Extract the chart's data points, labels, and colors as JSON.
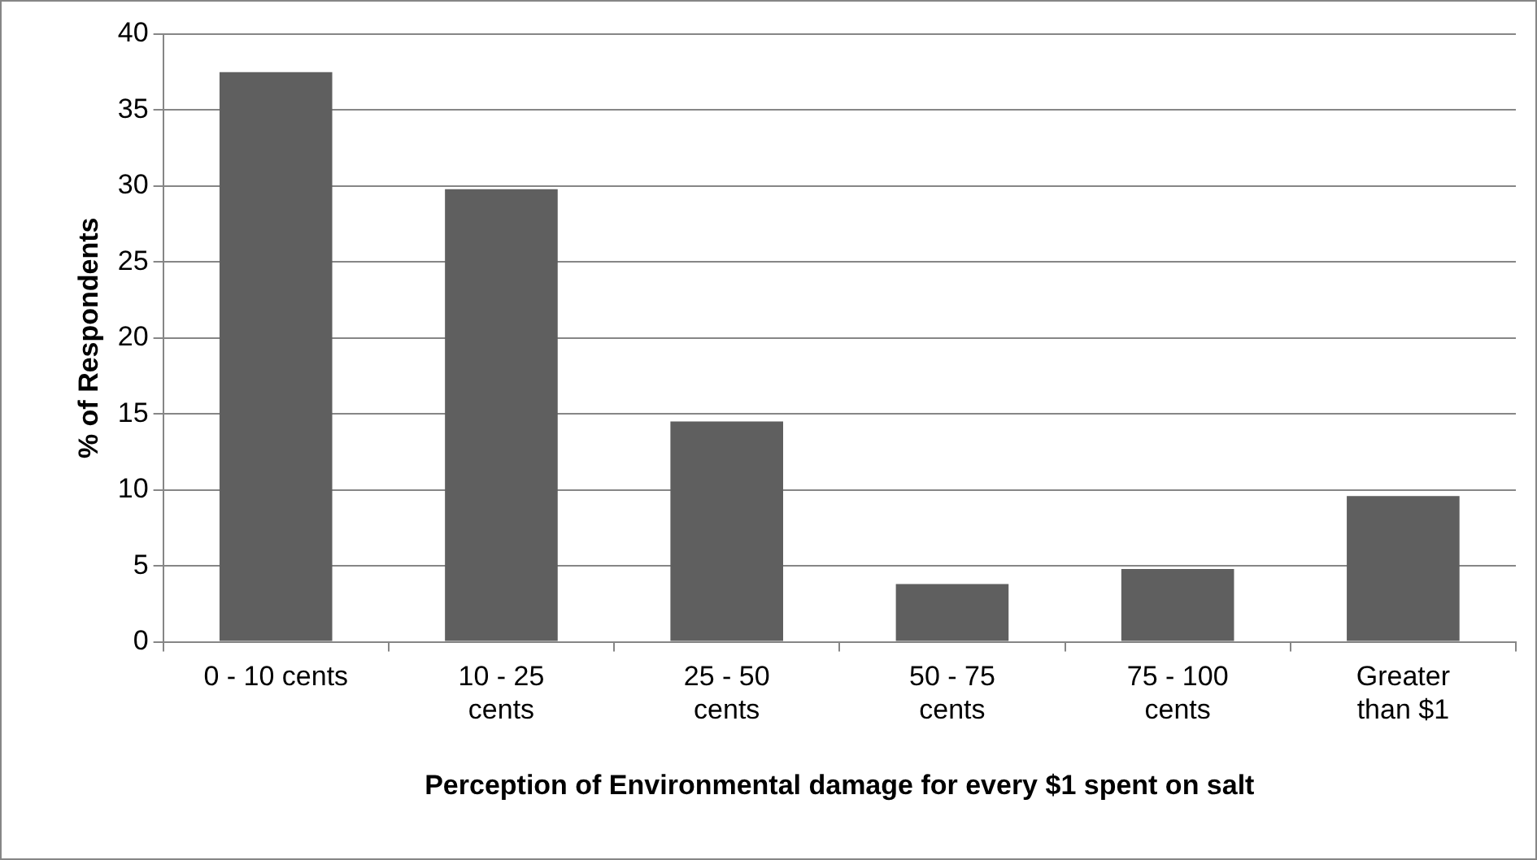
{
  "chart_data": {
    "type": "bar",
    "xlabel": "Perception of Environmental damage for every $1 spent on salt",
    "ylabel": "% of Respondents",
    "categories": [
      "0 - 10 cents",
      "10 - 25 cents",
      "25 - 50 cents",
      "50 - 75 cents",
      "75 - 100 cents",
      "Greater than $1"
    ],
    "values": [
      37.5,
      29.8,
      14.5,
      3.8,
      4.8,
      9.6
    ],
    "color": "#5f5f5f",
    "ylim": [
      0,
      40
    ],
    "yticks": [
      0,
      5,
      10,
      15,
      20,
      25,
      30,
      35,
      40
    ],
    "grid": "y",
    "legend": false
  }
}
